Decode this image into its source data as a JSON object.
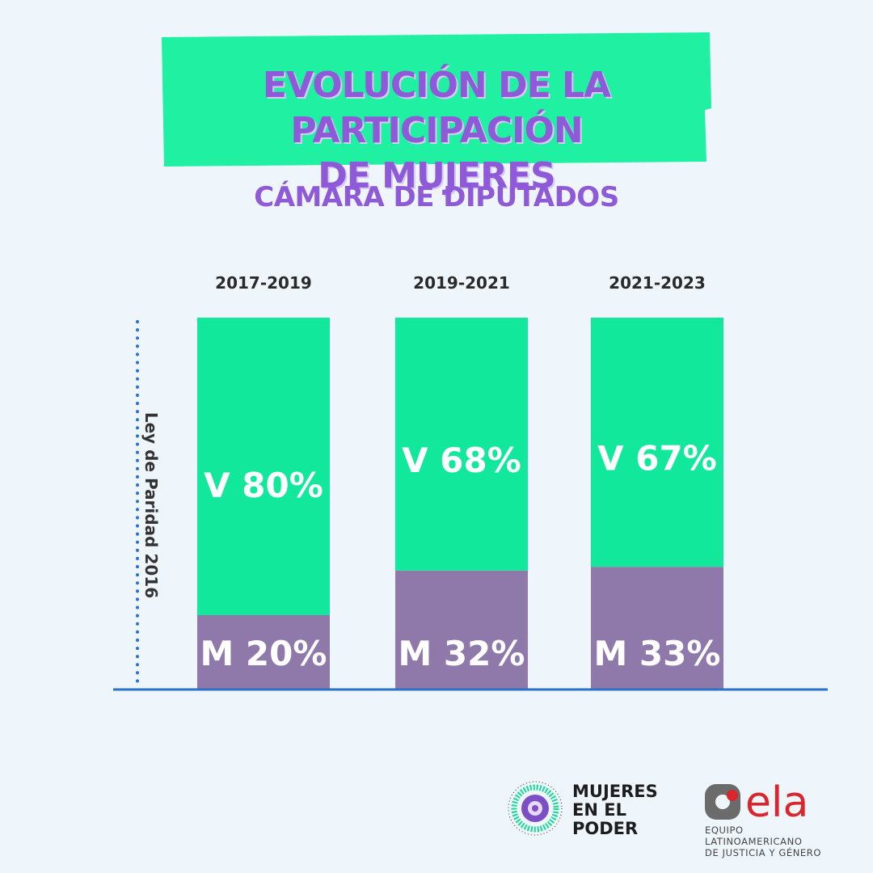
{
  "header": {
    "title_line1": "EVOLUCIÓN DE LA PARTICIPACIÓN",
    "title_line2": "DE MUJERES",
    "subtitle": "CÁMARA DE DIPUTADOS"
  },
  "annotation": "Ley de Paridad 2016",
  "chart_data": {
    "type": "bar",
    "stacked": true,
    "categories": [
      "2017-2019",
      "2019-2021",
      "2021-2023"
    ],
    "series": [
      {
        "name": "M",
        "values": [
          20,
          32,
          33
        ],
        "labels": [
          "M 20%",
          "M 32%",
          "M 33%"
        ],
        "color": "#8f78aa"
      },
      {
        "name": "V",
        "values": [
          80,
          68,
          67
        ],
        "labels": [
          "V 80%",
          "V 68%",
          "V 67%"
        ],
        "color": "#12e89c"
      }
    ],
    "ylim": [
      0,
      100
    ],
    "grid": false
  },
  "colors": {
    "banner": "#1ff0a2",
    "title": "#8e5ad8",
    "baseline": "#2a73c8"
  },
  "logos": {
    "mujeres_line1": "MUJERES",
    "mujeres_line2": "EN EL",
    "mujeres_line3": "PODER",
    "ela_name": "ela",
    "ela_line1": "EQUIPO LATINOAMERICANO",
    "ela_line2": "DE JUSTICIA Y GÉNERO"
  }
}
